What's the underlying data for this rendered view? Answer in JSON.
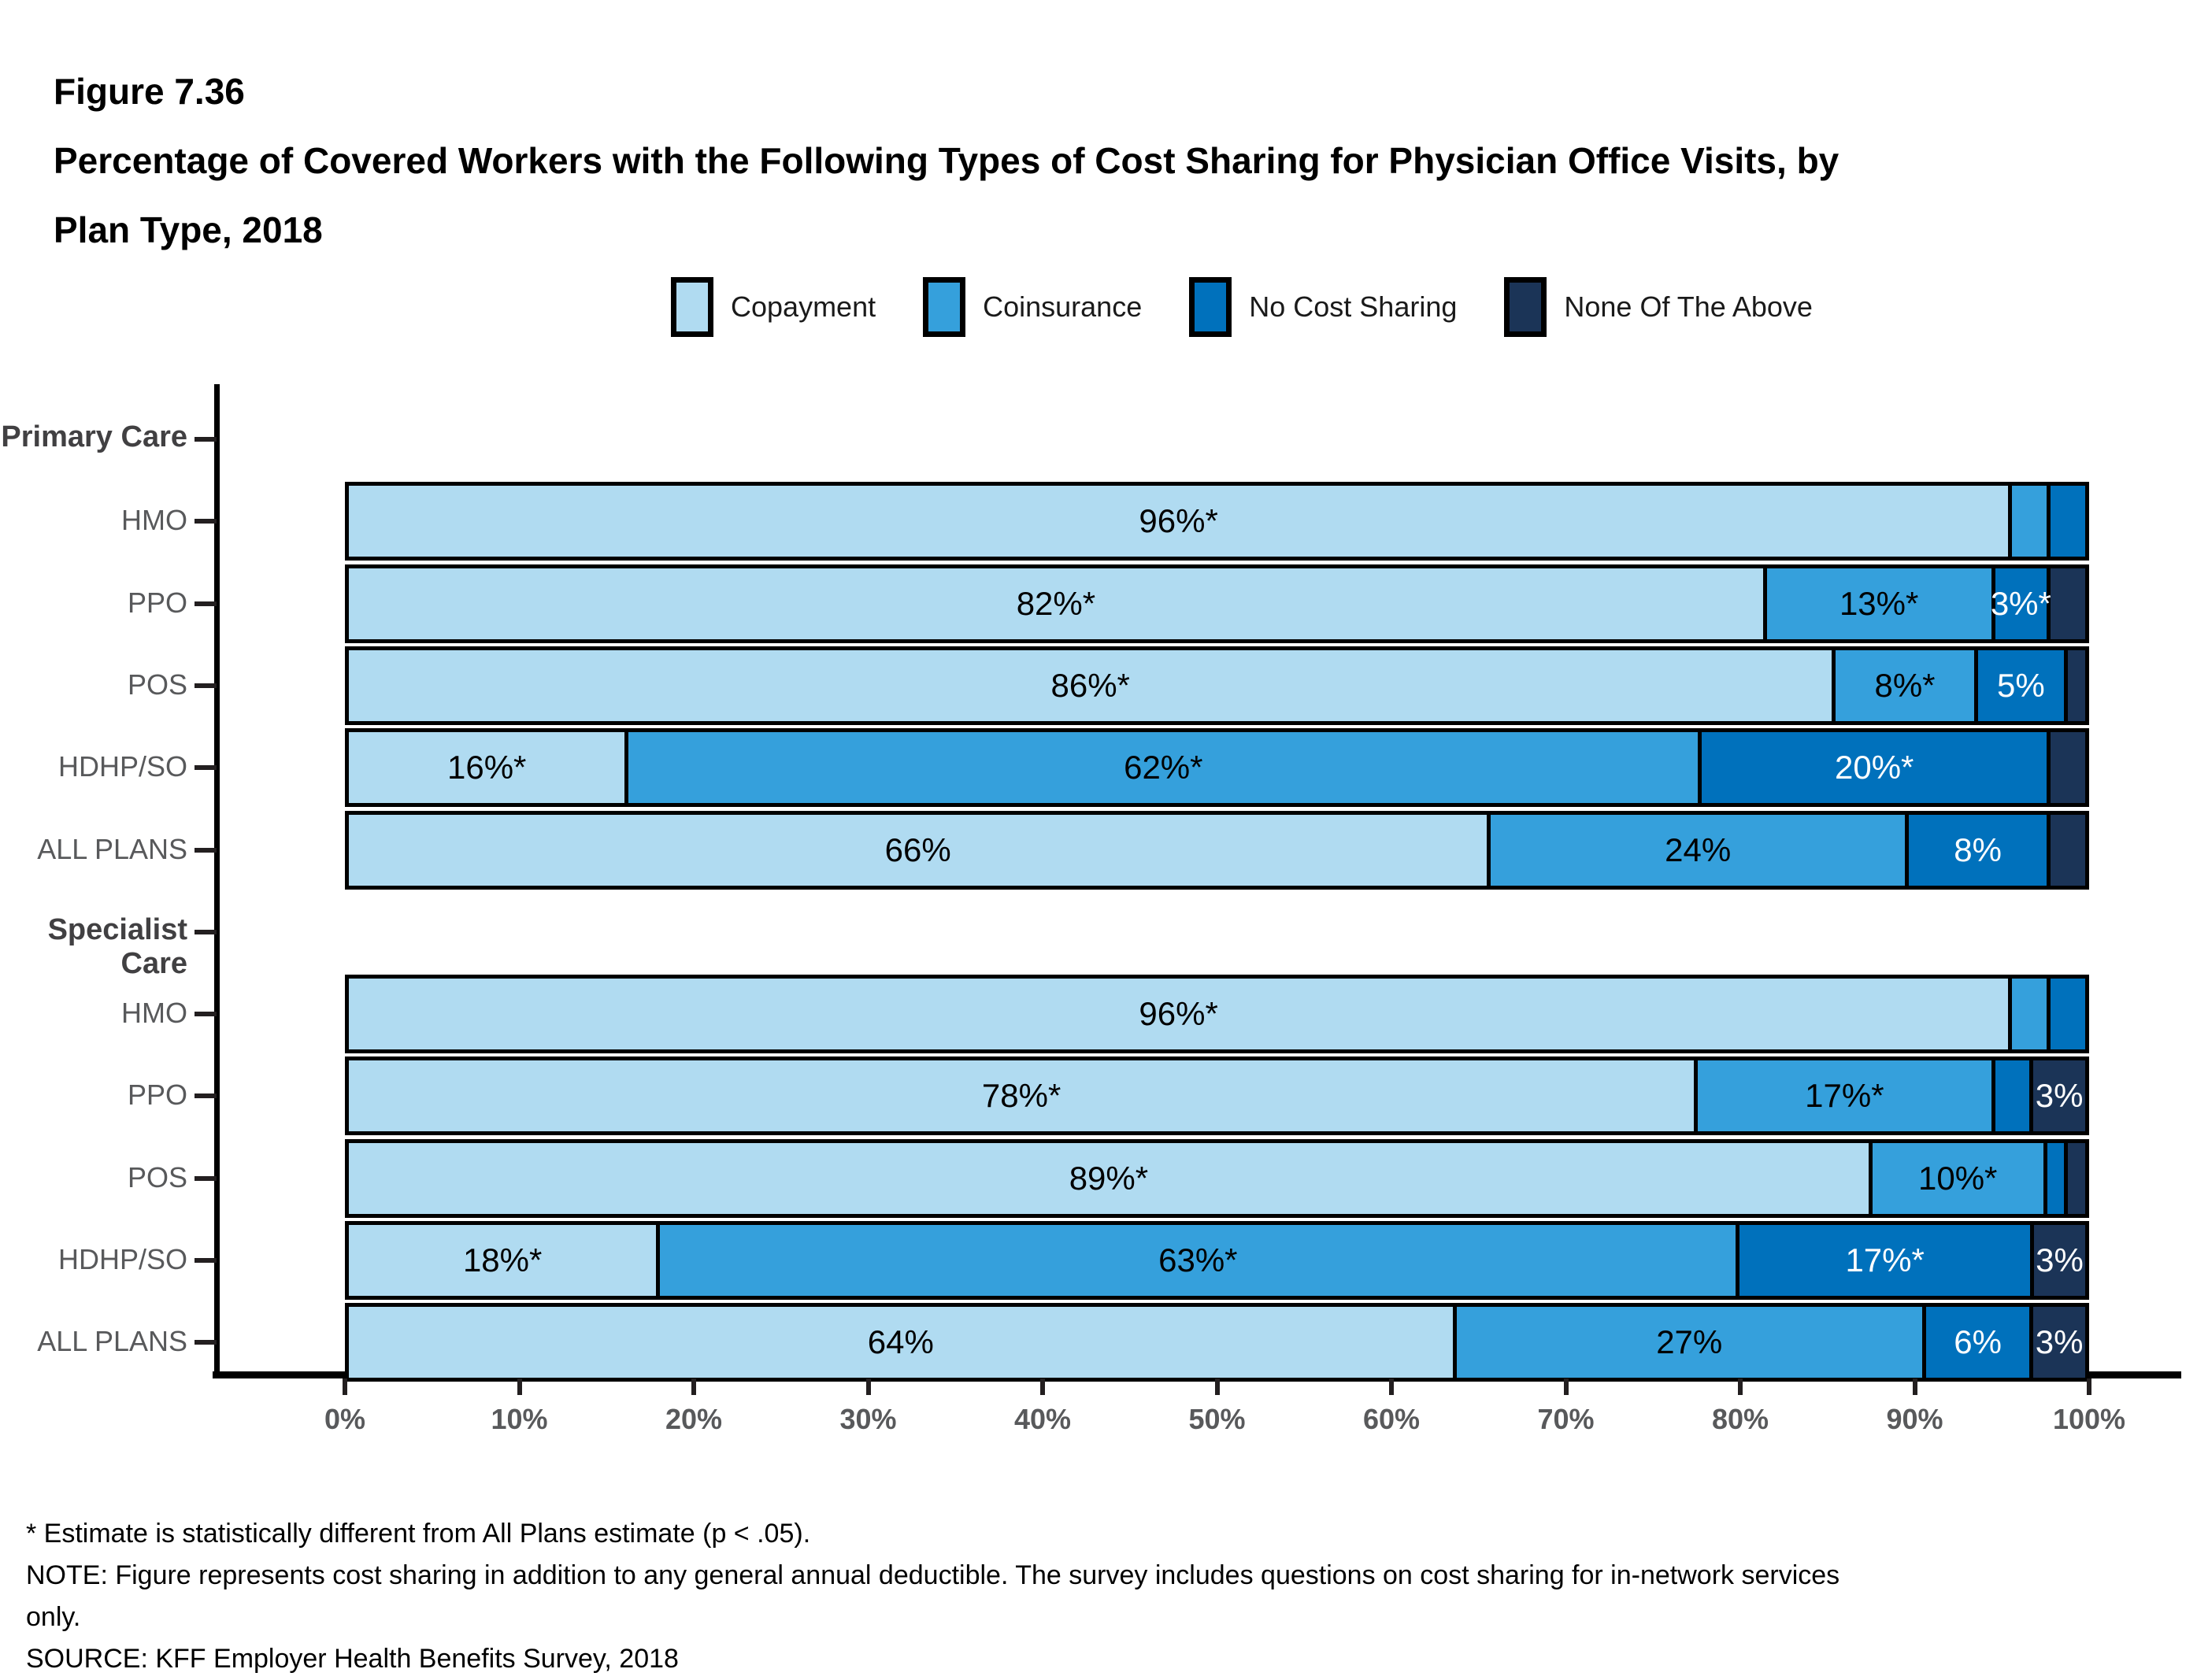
{
  "figure": {
    "label": "Figure 7.36",
    "title": "Percentage of Covered Workers with the Following Types of Cost Sharing for Physician Office Visits, by Plan Type, 2018"
  },
  "legend": {
    "items": [
      {
        "label": "Copayment",
        "color": "#B0DBF1"
      },
      {
        "label": "Coinsurance",
        "color": "#35A0DC"
      },
      {
        "label": "No Cost Sharing",
        "color": "#0071BC"
      },
      {
        "label": "None Of The Above",
        "color": "#1B3457"
      }
    ]
  },
  "chart_data": {
    "type": "bar",
    "orientation": "horizontal",
    "stacked": true,
    "title": "Percentage of Covered Workers with the Following Types of Cost Sharing for Physician Office Visits, by Plan Type, 2018",
    "xlabel": "",
    "ylabel": "",
    "xlim": [
      0,
      100
    ],
    "x_axis_ticks": [
      "0%",
      "10%",
      "20%",
      "30%",
      "40%",
      "50%",
      "60%",
      "70%",
      "80%",
      "90%",
      "100%"
    ],
    "legend_position": "top",
    "grid": false,
    "series_names": [
      "Copayment",
      "Coinsurance",
      "No Cost Sharing",
      "None Of The Above"
    ],
    "groups": [
      {
        "label": "Primary Care",
        "rows": [
          {
            "label": "HMO",
            "values": [
              96,
              2,
              2,
              0
            ],
            "labels": [
              "96%*",
              "",
              "",
              ""
            ]
          },
          {
            "label": "PPO",
            "values": [
              82,
              13,
              3,
              2
            ],
            "labels": [
              "82%*",
              "13%*",
              "3%*",
              ""
            ]
          },
          {
            "label": "POS",
            "values": [
              86,
              8,
              5,
              1
            ],
            "labels": [
              "86%*",
              "8%*",
              "5%",
              ""
            ]
          },
          {
            "label": "HDHP/SO",
            "values": [
              16,
              62,
              20,
              2
            ],
            "labels": [
              "16%*",
              "62%*",
              "20%*",
              ""
            ]
          },
          {
            "label": "ALL PLANS",
            "values": [
              66,
              24,
              8,
              2
            ],
            "labels": [
              "66%",
              "24%",
              "8%",
              ""
            ]
          }
        ]
      },
      {
        "label": "Specialist Care",
        "rows": [
          {
            "label": "HMO",
            "values": [
              96,
              2,
              2,
              0
            ],
            "labels": [
              "96%*",
              "",
              "",
              ""
            ]
          },
          {
            "label": "PPO",
            "values": [
              78,
              17,
              2,
              3
            ],
            "labels": [
              "78%*",
              "17%*",
              "",
              "3%"
            ]
          },
          {
            "label": "POS",
            "values": [
              89,
              10,
              1,
              1
            ],
            "labels": [
              "89%*",
              "10%*",
              "",
              ""
            ]
          },
          {
            "label": "HDHP/SO",
            "values": [
              18,
              63,
              17,
              3
            ],
            "labels": [
              "18%*",
              "63%*",
              "17%*",
              "3%"
            ]
          },
          {
            "label": "ALL PLANS",
            "values": [
              64,
              27,
              6,
              3
            ],
            "labels": [
              "64%",
              "27%",
              "6%",
              "3%"
            ]
          }
        ]
      }
    ]
  },
  "footnotes": {
    "lines": [
      "* Estimate is statistically different from All Plans estimate (p < .05).",
      "NOTE: Figure represents cost sharing in addition to any general annual deductible. The survey includes questions on cost sharing for in-network services only.",
      "SOURCE: KFF Employer Health Benefits Survey, 2018"
    ]
  },
  "colors": {
    "axis": "#000000",
    "tick": "#231F20",
    "row_label": "#58595B",
    "group_label": "#414042",
    "x_tick_label": "#58595B",
    "segment_label_dark": "#000000",
    "segment_label_light": "#ffffff"
  }
}
